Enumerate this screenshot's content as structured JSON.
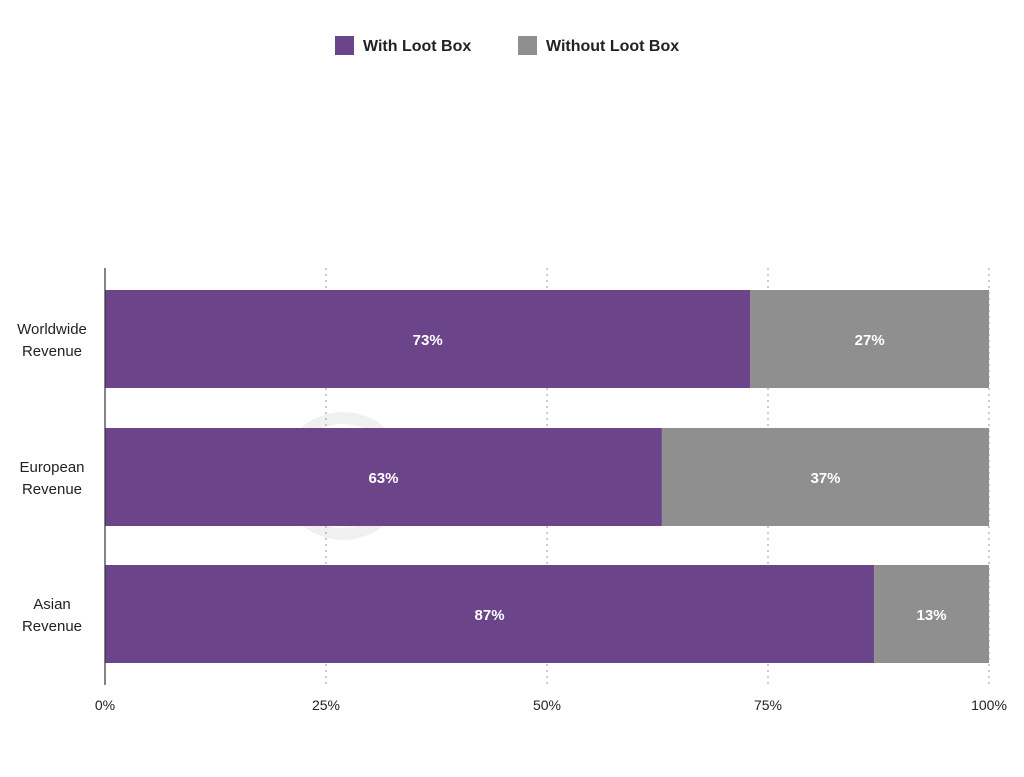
{
  "chart_data": {
    "type": "bar",
    "orientation": "horizontal",
    "stacked": true,
    "categories": [
      [
        "Worldwide",
        "Revenue"
      ],
      [
        "European",
        "Revenue"
      ],
      [
        "Asian",
        "Revenue"
      ]
    ],
    "series": [
      {
        "name": "With Loot Box",
        "color": "#6c4489",
        "values": [
          73,
          63,
          87
        ],
        "labels": [
          "73%",
          "63%",
          "87%"
        ]
      },
      {
        "name": "Without Loot Box",
        "color": "#8f8f8f",
        "values": [
          27,
          37,
          13
        ],
        "labels": [
          "27%",
          "37%",
          "13%"
        ]
      }
    ],
    "xlim": [
      0,
      100
    ],
    "x_ticks": [
      0,
      25,
      50,
      75,
      100
    ],
    "x_tick_labels": [
      "0%",
      "25%",
      "50%",
      "75%",
      "100%"
    ],
    "grid": "vertical-dotted",
    "legend_position": "top-center",
    "watermark": "SensorTower"
  }
}
